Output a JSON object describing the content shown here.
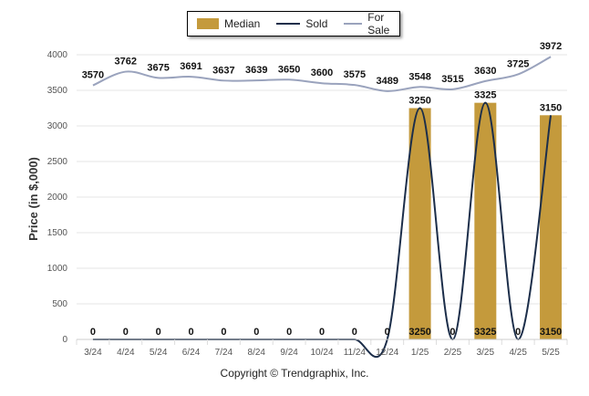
{
  "legend": {
    "median": "Median",
    "sold": "Sold",
    "for_sale": "For Sale"
  },
  "footer": "Copyright © Trendgraphix, Inc.",
  "colors": {
    "median": "#c49a3c",
    "sold": "#1c2e4a",
    "for_sale": "#9aa3bd",
    "grid": "#e6e6e6"
  },
  "chart_data": {
    "type": "bar",
    "categories": [
      "3/24",
      "4/24",
      "5/24",
      "6/24",
      "7/24",
      "8/24",
      "9/24",
      "10/24",
      "11/24",
      "12/24",
      "1/25",
      "2/25",
      "3/25",
      "4/25",
      "5/25"
    ],
    "ylabel": "Price (in $,000)",
    "ylim": [
      0,
      4000
    ],
    "yticks": [
      0,
      500,
      1000,
      1500,
      2000,
      2500,
      3000,
      3500,
      4000
    ],
    "grid": true,
    "legend_position": "top",
    "series": [
      {
        "name": "Median",
        "kind": "bar",
        "values": [
          0,
          0,
          0,
          0,
          0,
          0,
          0,
          0,
          0,
          0,
          3250,
          0,
          3325,
          0,
          3150
        ]
      },
      {
        "name": "Sold",
        "kind": "line",
        "values": [
          0,
          0,
          0,
          0,
          0,
          0,
          0,
          0,
          0,
          0,
          3250,
          0,
          3325,
          0,
          3150
        ]
      },
      {
        "name": "For Sale",
        "kind": "line",
        "values": [
          3570,
          3762,
          3675,
          3691,
          3637,
          3639,
          3650,
          3600,
          3575,
          3489,
          3548,
          3515,
          3630,
          3725,
          3972
        ]
      }
    ]
  }
}
